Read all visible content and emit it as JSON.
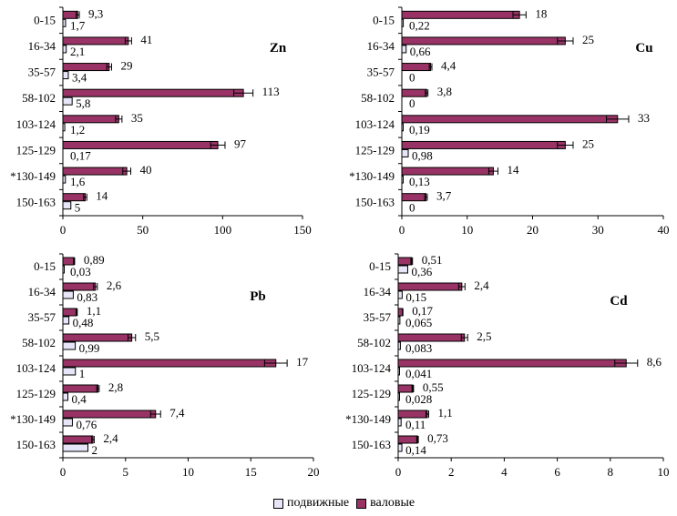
{
  "chart_data": [
    {
      "type": "bar",
      "orientation": "horizontal",
      "title": "Zn",
      "categories": [
        "0-15",
        "16-34",
        "35-57",
        "58-102",
        "103-124",
        "125-129",
        "*130-149",
        "150-163"
      ],
      "series": [
        {
          "name": "валовые",
          "values": [
            9.3,
            41,
            29,
            113,
            35,
            97,
            40,
            14
          ],
          "labels": [
            "9,3",
            "41",
            "29",
            "113",
            "35",
            "97",
            "40",
            "14"
          ],
          "errors": [
            1,
            2,
            1.5,
            6,
            2,
            4.5,
            2.5,
            1
          ]
        },
        {
          "name": "подвижные",
          "values": [
            1.7,
            2.1,
            3.4,
            5.8,
            1.2,
            0.17,
            1.6,
            5
          ],
          "labels": [
            "1,7",
            "2,1",
            "3,4",
            "5,8",
            "1,2",
            "0,17",
            "1,6",
            "5"
          ]
        }
      ],
      "xlim": [
        0,
        150
      ],
      "xticks": [
        "0",
        "50",
        "100",
        "150"
      ],
      "tick_values": [
        0,
        50,
        100,
        150
      ]
    },
    {
      "type": "bar",
      "orientation": "horizontal",
      "title": "Cu",
      "categories": [
        "0-15",
        "16-34",
        "35-57",
        "58-102",
        "103-124",
        "125-129",
        "*130-149",
        "150-163"
      ],
      "series": [
        {
          "name": "валовые",
          "values": [
            18,
            25,
            4.4,
            3.8,
            33,
            25,
            14,
            3.7
          ],
          "labels": [
            "18",
            "25",
            "4,4",
            "3,8",
            "33",
            "25",
            "14",
            "3,7"
          ],
          "errors": [
            1,
            1.2,
            0.2,
            0.2,
            1.7,
            1.2,
            0.7,
            0.2
          ]
        },
        {
          "name": "подвижные",
          "values": [
            0.22,
            0.66,
            0,
            0,
            0.19,
            0.98,
            0.13,
            0
          ],
          "labels": [
            "0,22",
            "0,66",
            "0",
            "0",
            "0,19",
            "0,98",
            "0,13",
            "0"
          ]
        }
      ],
      "xlim": [
        0,
        40
      ],
      "xticks": [
        "0",
        "10",
        "20",
        "30",
        "40"
      ],
      "tick_values": [
        0,
        10,
        20,
        30,
        40
      ]
    },
    {
      "type": "bar",
      "orientation": "horizontal",
      "title": "Pb",
      "categories": [
        "0-15",
        "16-34",
        "35-57",
        "58-102",
        "103-124",
        "125-129",
        "*130-149",
        "150-163"
      ],
      "series": [
        {
          "name": "валовые",
          "values": [
            0.89,
            2.6,
            1.1,
            5.5,
            17,
            2.8,
            7.4,
            2.4
          ],
          "labels": [
            "0,89",
            "2,6",
            "1,1",
            "5,5",
            "17",
            "2,8",
            "7,4",
            "2,4"
          ],
          "errors": [
            0.05,
            0.15,
            0.05,
            0.3,
            0.9,
            0.1,
            0.4,
            0.1
          ]
        },
        {
          "name": "подвижные",
          "values": [
            0.03,
            0.83,
            0.48,
            0.99,
            1,
            0.4,
            0.76,
            2
          ],
          "labels": [
            "0,03",
            "0,83",
            "0,48",
            "0,99",
            "1",
            "0,4",
            "0,76",
            "2"
          ]
        }
      ],
      "xlim": [
        0,
        20
      ],
      "xticks": [
        "0",
        "5",
        "10",
        "15",
        "20"
      ],
      "tick_values": [
        0,
        5,
        10,
        15,
        20
      ]
    },
    {
      "type": "bar",
      "orientation": "horizontal",
      "title": "Cd",
      "categories": [
        "0-15",
        "16-34",
        "35-57",
        "58-102",
        "103-124",
        "125-129",
        "*130-149",
        "150-163"
      ],
      "series": [
        {
          "name": "валовые",
          "values": [
            0.51,
            2.4,
            0.17,
            2.5,
            8.6,
            0.55,
            1.1,
            0.73
          ],
          "labels": [
            "0,51",
            "2,4",
            "0,17",
            "2,5",
            "8,6",
            "0,55",
            "1,1",
            "0,73"
          ],
          "errors": [
            0.03,
            0.12,
            0.01,
            0.12,
            0.43,
            0.03,
            0.05,
            0.03
          ]
        },
        {
          "name": "подвижные",
          "values": [
            0.36,
            0.15,
            0.065,
            0.083,
            0.041,
            0.028,
            0.11,
            0.14
          ],
          "labels": [
            "0,36",
            "0,15",
            "0,065",
            "0,083",
            "0,041",
            "0,028",
            "0,11",
            "0,14"
          ]
        }
      ],
      "xlim": [
        0,
        10
      ],
      "xticks": [
        "0",
        "2",
        "4",
        "6",
        "8",
        "10"
      ],
      "tick_values": [
        0,
        2,
        4,
        6,
        8,
        10
      ]
    }
  ],
  "legend": {
    "placement": "bottom-center",
    "items": [
      {
        "label": "подвижные",
        "color": "#E6E6F8"
      },
      {
        "label": "валовые",
        "color": "#993366"
      }
    ]
  },
  "colors": {
    "total": "#993366",
    "mobile": "#E6E6F8"
  }
}
